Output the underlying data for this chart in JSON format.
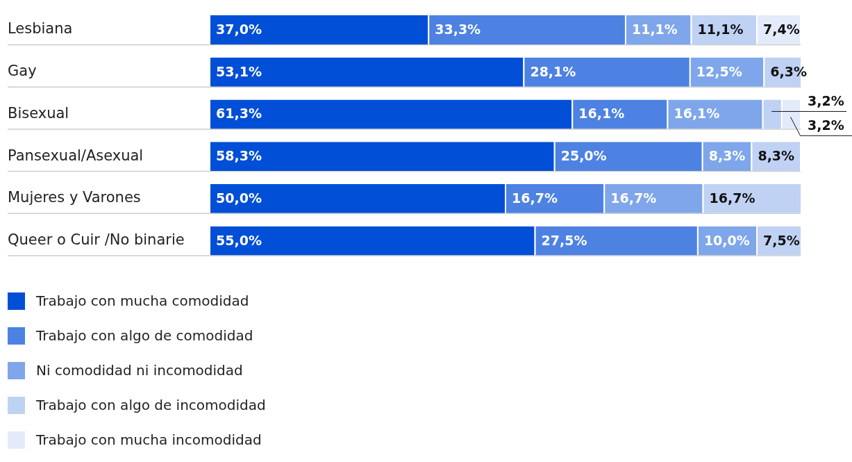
{
  "chart_data": {
    "type": "bar",
    "orientation": "horizontal",
    "stacked": true,
    "xlim": [
      0,
      100
    ],
    "tick_labels": "y",
    "grid": "y",
    "legend": "bottom",
    "categories": [
      "Lesbiana",
      "Gay",
      "Bisexual",
      "Pansexual/Asexual",
      "Mujeres y Varones",
      "Queer o Cuir /No binarie"
    ],
    "series": [
      {
        "name": "Trabajo con mucha comodidad",
        "color": "#004fd6",
        "values": [
          37.0,
          53.1,
          61.3,
          58.3,
          50.0,
          55.0
        ],
        "value_labels": [
          "37,0%",
          "53,1%",
          "61,3%",
          "58,3%",
          "50,0%",
          "55,0%"
        ]
      },
      {
        "name": "Trabajo con algo de comodidad",
        "color": "#4d82e2",
        "values": [
          33.3,
          28.1,
          16.1,
          25.0,
          16.7,
          27.5
        ],
        "value_labels": [
          "33,3%",
          "28,1%",
          "16,1%",
          "25,0%",
          "16,7%",
          "27,5%"
        ]
      },
      {
        "name": "Ni comodidad ni incomodidad",
        "color": "#7fa6ea",
        "values": [
          11.1,
          12.5,
          16.1,
          8.3,
          16.7,
          10.0
        ],
        "value_labels": [
          "11,1%",
          "12,5%",
          "16,1%",
          "8,3%",
          "16,7%",
          "10,0%"
        ]
      },
      {
        "name": "Trabajo con algo de incomodidad",
        "color": "#bfd2f4",
        "values": [
          11.1,
          6.3,
          3.2,
          8.3,
          16.7,
          7.5
        ],
        "value_labels": [
          "11,1%",
          "6,3%",
          "3,2%",
          "8,3%",
          "16,7%",
          "7,5%"
        ]
      },
      {
        "name": "Trabajo con mucha incomodidad",
        "color": "#e3ebfa",
        "values": [
          7.4,
          null,
          3.2,
          null,
          null,
          null
        ],
        "value_labels": [
          "7,4%",
          null,
          "3,2%",
          null,
          null,
          null
        ]
      }
    ]
  }
}
